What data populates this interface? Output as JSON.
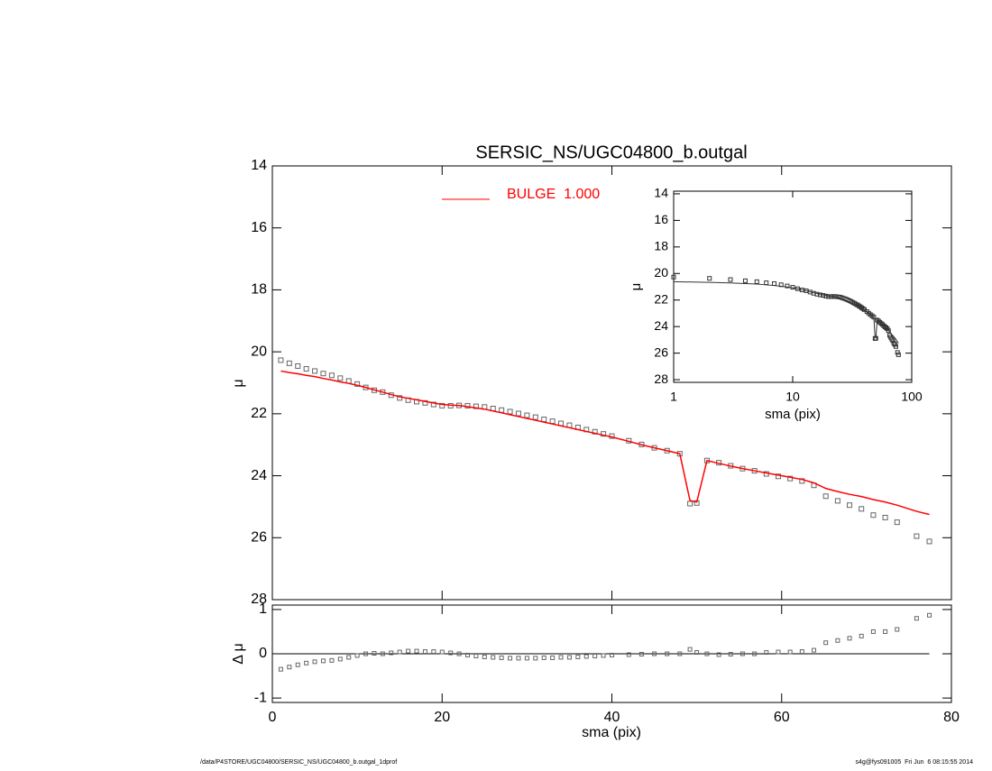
{
  "chart_data": [
    {
      "type": "scatter",
      "title": "SERSIC_NS/UGC04800_b.outgal",
      "ylabel": "μ",
      "x": [
        1,
        2,
        3,
        4,
        5,
        6,
        7,
        8,
        9,
        10,
        11,
        12,
        13,
        14,
        15,
        16,
        17,
        18,
        19,
        20,
        21,
        22,
        23,
        24,
        25,
        26,
        27,
        28,
        29,
        30,
        31,
        32,
        33,
        34,
        35,
        36,
        37,
        38,
        39,
        40,
        42,
        43.5,
        45,
        46.5,
        48,
        49.2,
        50,
        51.2,
        52.6,
        54,
        55.4,
        56.8,
        58.2,
        59.6,
        61,
        62.4,
        63.8,
        65.2,
        66.6,
        68,
        69.4,
        70.8,
        72.2,
        73.6,
        75.9,
        77.4
      ],
      "series": [
        {
          "color": "#666666",
          "marker": "square",
          "values": [
            20.27,
            20.37,
            20.46,
            20.55,
            20.62,
            20.7,
            20.76,
            20.85,
            20.94,
            21.04,
            21.15,
            21.24,
            21.3,
            21.4,
            21.49,
            21.56,
            21.61,
            21.65,
            21.7,
            21.74,
            21.74,
            21.73,
            21.74,
            21.76,
            21.78,
            21.83,
            21.88,
            21.93,
            21.99,
            22.05,
            22.11,
            22.18,
            22.24,
            22.31,
            22.37,
            22.44,
            22.51,
            22.58,
            22.65,
            22.72,
            22.87,
            22.99,
            23.1,
            23.19,
            23.29,
            24.9,
            24.88,
            23.51,
            23.58,
            23.68,
            23.77,
            23.84,
            23.94,
            24.02,
            24.09,
            24.17,
            24.31,
            24.66,
            24.81,
            24.95,
            25.07,
            25.27,
            25.35,
            25.5,
            25.95,
            26.12
          ]
        },
        {
          "name": "BULGE  1.000",
          "color": "#ff0000",
          "marker": "line",
          "values": [
            20.62,
            20.67,
            20.71,
            20.76,
            20.8,
            20.86,
            20.91,
            20.97,
            21.02,
            21.08,
            21.15,
            21.23,
            21.3,
            21.38,
            21.45,
            21.5,
            21.55,
            21.6,
            21.65,
            21.7,
            21.72,
            21.73,
            21.77,
            21.81,
            21.85,
            21.91,
            21.97,
            22.03,
            22.09,
            22.15,
            22.21,
            22.27,
            22.33,
            22.39,
            22.45,
            22.51,
            22.57,
            22.63,
            22.69,
            22.75,
            22.89,
            23.0,
            23.1,
            23.19,
            23.29,
            24.8,
            24.85,
            23.51,
            23.6,
            23.69,
            23.77,
            23.84,
            23.91,
            23.98,
            24.05,
            24.12,
            24.23,
            24.41,
            24.51,
            24.6,
            24.67,
            24.77,
            24.85,
            24.95,
            25.15,
            25.25
          ]
        }
      ],
      "xlim": [
        0,
        80
      ],
      "ylim": [
        28,
        14
      ],
      "yticks": [
        14,
        16,
        18,
        20,
        22,
        24,
        26,
        28
      ],
      "annotations": [
        "/data/P4STORE/UGC04800/SERSIC_NS/UGC04800_b.outgal_1dprof",
        "s4g@fys091005  Fri Jun  6 08:15:55 2014"
      ]
    },
    {
      "type": "scatter",
      "xlabel": "sma (pix)",
      "ylabel": "μ",
      "xscale": "log",
      "xlim": [
        1,
        100
      ],
      "ylim": [
        28.2,
        13.8
      ],
      "xticks": [
        1,
        10,
        100
      ],
      "yticks": [
        14,
        16,
        18,
        20,
        22,
        24,
        26,
        28
      ]
    },
    {
      "type": "scatter",
      "xlabel": "sma (pix)",
      "ylabel": "Δ μ",
      "values": [
        -0.35,
        -0.3,
        -0.25,
        -0.21,
        -0.18,
        -0.16,
        -0.15,
        -0.12,
        -0.08,
        -0.04,
        0,
        0.01,
        0,
        0.02,
        0.04,
        0.06,
        0.06,
        0.05,
        0.05,
        0.04,
        0.02,
        0,
        -0.03,
        -0.05,
        -0.07,
        -0.08,
        -0.09,
        -0.1,
        -0.1,
        -0.1,
        -0.1,
        -0.09,
        -0.09,
        -0.08,
        -0.08,
        -0.07,
        -0.06,
        -0.05,
        -0.04,
        -0.03,
        -0.02,
        -0.01,
        0,
        0,
        0,
        0.1,
        0.03,
        0,
        -0.02,
        -0.01,
        0,
        0,
        0.03,
        0.04,
        0.04,
        0.05,
        0.08,
        0.25,
        0.3,
        0.35,
        0.4,
        0.5,
        0.5,
        0.55,
        0.8,
        0.87
      ],
      "xlim": [
        0,
        80
      ],
      "ylim": [
        -1.1,
        1.1
      ],
      "xticks": [
        0,
        20,
        40,
        60,
        80
      ],
      "yticks": [
        -1,
        0,
        1
      ]
    }
  ]
}
